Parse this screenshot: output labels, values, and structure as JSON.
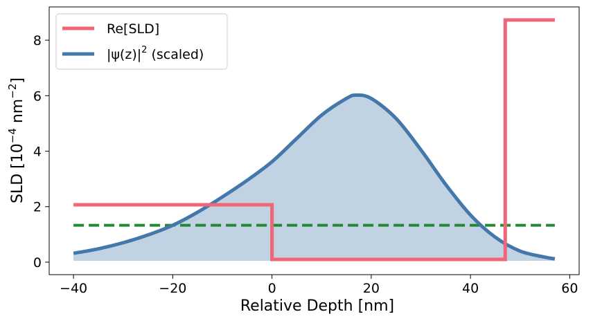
{
  "chart_data": {
    "type": "line",
    "xlabel": "Relative Depth [nm]",
    "ylabel_main": "SLD [10",
    "ylabel_exp": "−4",
    "ylabel_mid": " nm",
    "ylabel_exp2": "−2",
    "ylabel_end": "]",
    "xlim": [
      -44.9,
      61.9
    ],
    "ylim": [
      -0.45,
      9.2
    ],
    "xticks": [
      -40,
      -20,
      0,
      20,
      40,
      60
    ],
    "xtick_labels": [
      "−40",
      "−20",
      "0",
      "20",
      "40",
      "60"
    ],
    "yticks": [
      0,
      2,
      4,
      6,
      8
    ],
    "ytick_labels": [
      "0",
      "2",
      "4",
      "6",
      "8"
    ],
    "grid": false,
    "legend_placement": "top-left",
    "legend": [
      {
        "label": "Re[SLD]",
        "color": "#ee6677"
      },
      {
        "label_prefix": "|ψ(z)|",
        "label_exp": "2",
        "label_suffix": " (scaled)",
        "color": "#4477aa"
      }
    ],
    "series": [
      {
        "name": "Re[SLD]",
        "color": "#ee6677",
        "style": "step",
        "x": [
          -40,
          0,
          0,
          47,
          47,
          57
        ],
        "y": [
          2.07,
          2.07,
          0.1,
          0.1,
          8.73,
          8.73
        ]
      },
      {
        "name": "|ψ(z)|² (scaled)",
        "color": "#4477aa",
        "fill_color": "#c1d3e3",
        "fill_baseline": 0.05,
        "x": [
          -40,
          -35,
          -30,
          -25,
          -20,
          -15,
          -10,
          -5,
          0,
          5,
          10,
          15,
          17,
          20,
          25,
          30,
          35,
          40,
          45,
          50,
          55,
          57
        ],
        "y": [
          0.32,
          0.48,
          0.7,
          0.98,
          1.33,
          1.8,
          2.35,
          2.95,
          3.62,
          4.46,
          5.3,
          5.9,
          6.02,
          5.9,
          5.18,
          4.05,
          2.8,
          1.7,
          0.9,
          0.4,
          0.18,
          0.12
        ]
      },
      {
        "name": "",
        "color": "#228833",
        "style": "dashed",
        "x": [
          -40,
          57
        ],
        "y": [
          1.33,
          1.33
        ]
      }
    ]
  }
}
